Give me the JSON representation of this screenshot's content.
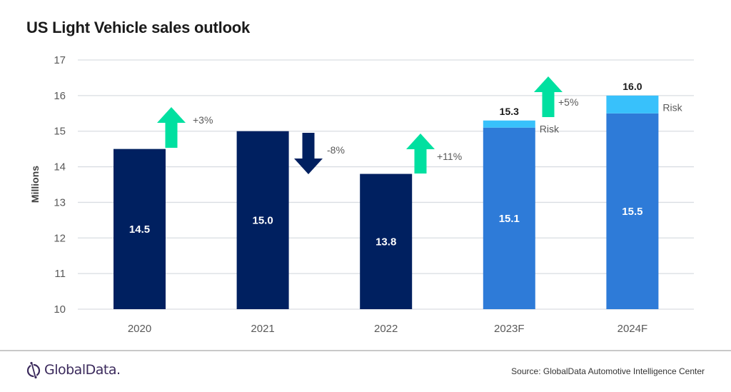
{
  "title": "US Light Vehicle sales outlook",
  "footer": {
    "logo_text": "GlobalData.",
    "source": "Source:  GlobalData Automotive  Intelligence Center"
  },
  "colors": {
    "actual": "#002060",
    "forecast": "#2e7bd8",
    "risk": "#38c1fb",
    "arrow_up": "#00e0a0",
    "arrow_down": "#002060",
    "grid": "#d9dde2",
    "tick_text": "#595959"
  },
  "chart_data": {
    "type": "bar",
    "title": "US Light Vehicle sales outlook",
    "xlabel": "",
    "ylabel": "Millions",
    "ylim": [
      10,
      17
    ],
    "yticks": [
      10,
      11,
      12,
      13,
      14,
      15,
      16,
      17
    ],
    "grid": true,
    "categories": [
      "2020",
      "2021",
      "2022",
      "2023F",
      "2024F"
    ],
    "series": [
      {
        "name": "Base",
        "values": [
          14.5,
          15.0,
          13.8,
          15.1,
          15.5
        ],
        "labels": [
          "14.5",
          "15.0",
          "13.8",
          "15.1",
          "15.5"
        ],
        "colors": [
          "actual",
          "actual",
          "actual",
          "forecast",
          "forecast"
        ]
      },
      {
        "name": "Risk",
        "values": [
          null,
          null,
          null,
          0.2,
          0.5
        ]
      }
    ],
    "totals": [
      null,
      null,
      null,
      15.3,
      16.0
    ],
    "total_labels": [
      "",
      "",
      "",
      "15.3",
      "16.0"
    ],
    "risk_labels": [
      "",
      "",
      "",
      "Risk",
      "Risk"
    ],
    "changes": [
      {
        "after": "2020",
        "label": "+3%",
        "direction": "up"
      },
      {
        "after": "2021",
        "label": "-8%",
        "direction": "down"
      },
      {
        "after": "2022",
        "label": "+11%",
        "direction": "up"
      },
      {
        "after": "2023F",
        "label": "+5%",
        "direction": "up"
      }
    ]
  }
}
